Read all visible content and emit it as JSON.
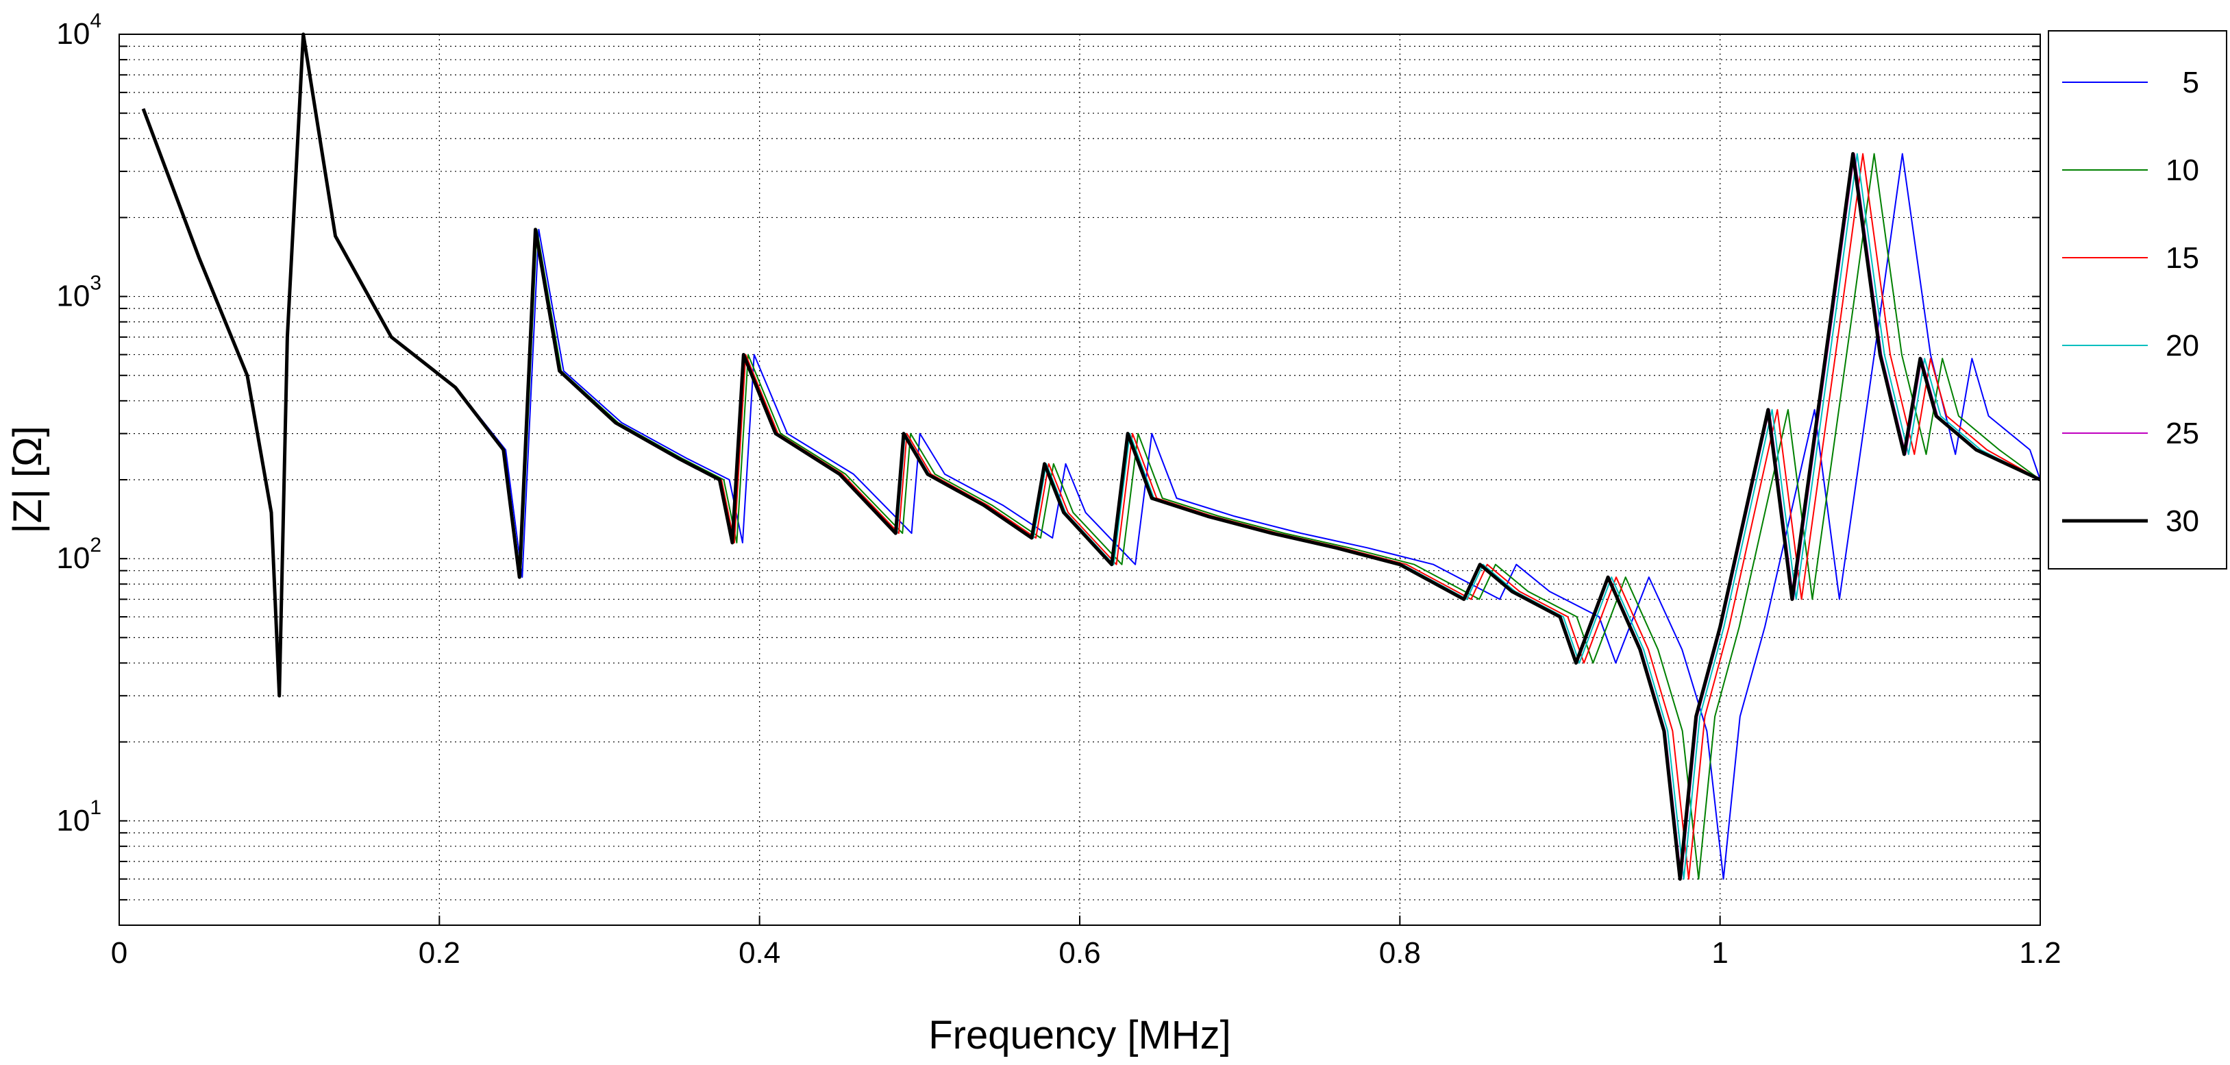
{
  "chart_data": {
    "type": "line",
    "title": "",
    "xlabel": "Frequency [MHz]",
    "ylabel": "|Z| [Ω]",
    "xlim": [
      0,
      1.2
    ],
    "ylim": [
      4,
      10000
    ],
    "yscale": "log",
    "grid": true,
    "grid_style": "dotted",
    "x_ticks": [
      {
        "value": 0,
        "label": "0"
      },
      {
        "value": 0.2,
        "label": "0.2"
      },
      {
        "value": 0.4,
        "label": "0.4"
      },
      {
        "value": 0.6,
        "label": "0.6"
      },
      {
        "value": 0.8,
        "label": "0.8"
      },
      {
        "value": 1.0,
        "label": "1"
      },
      {
        "value": 1.2,
        "label": "1.2"
      }
    ],
    "y_ticks": [
      {
        "value": 10,
        "base": "10",
        "exp": "1"
      },
      {
        "value": 100,
        "base": "10",
        "exp": "2"
      },
      {
        "value": 1000,
        "base": "10",
        "exp": "3"
      },
      {
        "value": 10000,
        "base": "10",
        "exp": "4"
      }
    ],
    "legend_position": "outside-right",
    "series": [
      {
        "name": "5",
        "color": "#0000ff",
        "width": 2,
        "shift": 1.035,
        "x": [
          0.015,
          0.05,
          0.08,
          0.095,
          0.1,
          0.105,
          0.115,
          0.135,
          0.17,
          0.21,
          0.24,
          0.25,
          0.26,
          0.275,
          0.31,
          0.35,
          0.375,
          0.383,
          0.39,
          0.41,
          0.45,
          0.485,
          0.49,
          0.505,
          0.54,
          0.57,
          0.578,
          0.59,
          0.62,
          0.63,
          0.645,
          0.68,
          0.72,
          0.76,
          0.8,
          0.84,
          0.85,
          0.87,
          0.9,
          0.91,
          0.93,
          0.95,
          0.965,
          0.975,
          0.985,
          1.0,
          1.03,
          1.045,
          1.07,
          1.083,
          1.1,
          1.115,
          1.125,
          1.135,
          1.16,
          1.2
        ],
        "y": [
          5200,
          1400,
          500,
          150,
          30,
          700,
          10000,
          1700,
          700,
          450,
          260,
          85,
          1800,
          520,
          330,
          240,
          200,
          115,
          600,
          300,
          210,
          125,
          300,
          210,
          160,
          120,
          230,
          150,
          95,
          300,
          170,
          145,
          125,
          110,
          95,
          70,
          95,
          75,
          60,
          40,
          85,
          45,
          22,
          6,
          25,
          55,
          370,
          70,
          900,
          3500,
          600,
          250,
          580,
          350,
          260,
          200
        ]
      },
      {
        "name": "10",
        "color": "#008000",
        "width": 2,
        "shift": 1.015,
        "x": [
          0.015,
          0.05,
          0.08,
          0.095,
          0.1,
          0.105,
          0.115,
          0.135,
          0.17,
          0.21,
          0.24,
          0.25,
          0.26,
          0.275,
          0.31,
          0.35,
          0.375,
          0.383,
          0.39,
          0.41,
          0.45,
          0.485,
          0.49,
          0.505,
          0.54,
          0.57,
          0.578,
          0.59,
          0.62,
          0.63,
          0.645,
          0.68,
          0.72,
          0.76,
          0.8,
          0.84,
          0.85,
          0.87,
          0.9,
          0.91,
          0.93,
          0.95,
          0.965,
          0.975,
          0.985,
          1.0,
          1.03,
          1.045,
          1.07,
          1.083,
          1.1,
          1.115,
          1.125,
          1.135,
          1.16,
          1.2
        ],
        "y": [
          5200,
          1400,
          500,
          150,
          30,
          700,
          10000,
          1700,
          700,
          450,
          260,
          85,
          1800,
          520,
          330,
          240,
          200,
          115,
          600,
          300,
          210,
          125,
          300,
          210,
          160,
          120,
          230,
          150,
          95,
          300,
          170,
          145,
          125,
          110,
          95,
          70,
          95,
          75,
          60,
          40,
          85,
          45,
          22,
          6,
          25,
          55,
          370,
          70,
          900,
          3500,
          600,
          250,
          580,
          350,
          260,
          200
        ]
      },
      {
        "name": "15",
        "color": "#ff0000",
        "width": 2,
        "shift": 1.007,
        "x": [
          0.015,
          0.05,
          0.08,
          0.095,
          0.1,
          0.105,
          0.115,
          0.135,
          0.17,
          0.21,
          0.24,
          0.25,
          0.26,
          0.275,
          0.31,
          0.35,
          0.375,
          0.383,
          0.39,
          0.41,
          0.45,
          0.485,
          0.49,
          0.505,
          0.54,
          0.57,
          0.578,
          0.59,
          0.62,
          0.63,
          0.645,
          0.68,
          0.72,
          0.76,
          0.8,
          0.84,
          0.85,
          0.87,
          0.9,
          0.91,
          0.93,
          0.95,
          0.965,
          0.975,
          0.985,
          1.0,
          1.03,
          1.045,
          1.07,
          1.083,
          1.1,
          1.115,
          1.125,
          1.135,
          1.16,
          1.2
        ],
        "y": [
          5200,
          1400,
          500,
          150,
          30,
          700,
          10000,
          1700,
          700,
          450,
          260,
          85,
          1800,
          520,
          330,
          240,
          200,
          115,
          600,
          300,
          210,
          125,
          300,
          210,
          160,
          120,
          230,
          150,
          95,
          300,
          170,
          145,
          125,
          110,
          95,
          70,
          95,
          75,
          60,
          40,
          85,
          45,
          22,
          6,
          25,
          55,
          370,
          70,
          900,
          3500,
          600,
          250,
          580,
          350,
          260,
          200
        ]
      },
      {
        "name": "20",
        "color": "#00bfbf",
        "width": 2,
        "shift": 1.003,
        "x": [
          0.015,
          0.05,
          0.08,
          0.095,
          0.1,
          0.105,
          0.115,
          0.135,
          0.17,
          0.21,
          0.24,
          0.25,
          0.26,
          0.275,
          0.31,
          0.35,
          0.375,
          0.383,
          0.39,
          0.41,
          0.45,
          0.485,
          0.49,
          0.505,
          0.54,
          0.57,
          0.578,
          0.59,
          0.62,
          0.63,
          0.645,
          0.68,
          0.72,
          0.76,
          0.8,
          0.84,
          0.85,
          0.87,
          0.9,
          0.91,
          0.93,
          0.95,
          0.965,
          0.975,
          0.985,
          1.0,
          1.03,
          1.045,
          1.07,
          1.083,
          1.1,
          1.115,
          1.125,
          1.135,
          1.16,
          1.2
        ],
        "y": [
          5200,
          1400,
          500,
          150,
          30,
          700,
          10000,
          1700,
          700,
          450,
          260,
          85,
          1800,
          520,
          330,
          240,
          200,
          115,
          600,
          300,
          210,
          125,
          300,
          210,
          160,
          120,
          230,
          150,
          95,
          300,
          170,
          145,
          125,
          110,
          95,
          70,
          95,
          75,
          60,
          40,
          85,
          45,
          22,
          6,
          25,
          55,
          370,
          70,
          900,
          3500,
          600,
          250,
          580,
          350,
          260,
          200
        ]
      },
      {
        "name": "25",
        "color": "#bf00bf",
        "width": 2,
        "shift": 1.001,
        "x": [
          0.015,
          0.05,
          0.08,
          0.095,
          0.1,
          0.105,
          0.115,
          0.135,
          0.17,
          0.21,
          0.24,
          0.25,
          0.26,
          0.275,
          0.31,
          0.35,
          0.375,
          0.383,
          0.39,
          0.41,
          0.45,
          0.485,
          0.49,
          0.505,
          0.54,
          0.57,
          0.578,
          0.59,
          0.62,
          0.63,
          0.645,
          0.68,
          0.72,
          0.76,
          0.8,
          0.84,
          0.85,
          0.87,
          0.9,
          0.91,
          0.93,
          0.95,
          0.965,
          0.975,
          0.985,
          1.0,
          1.03,
          1.045,
          1.07,
          1.083,
          1.1,
          1.115,
          1.125,
          1.135,
          1.16,
          1.2
        ],
        "y": [
          5200,
          1400,
          500,
          150,
          30,
          700,
          10000,
          1700,
          700,
          450,
          260,
          85,
          1800,
          520,
          330,
          240,
          200,
          115,
          600,
          300,
          210,
          125,
          300,
          210,
          160,
          120,
          230,
          150,
          95,
          300,
          170,
          145,
          125,
          110,
          95,
          70,
          95,
          75,
          60,
          40,
          85,
          45,
          22,
          6,
          25,
          55,
          370,
          70,
          900,
          3500,
          600,
          250,
          580,
          350,
          260,
          200
        ]
      },
      {
        "name": "30",
        "color": "#000000",
        "width": 5,
        "shift": 1.0,
        "x": [
          0.015,
          0.05,
          0.08,
          0.095,
          0.1,
          0.105,
          0.115,
          0.135,
          0.17,
          0.21,
          0.24,
          0.25,
          0.26,
          0.275,
          0.31,
          0.35,
          0.375,
          0.383,
          0.39,
          0.41,
          0.45,
          0.485,
          0.49,
          0.505,
          0.54,
          0.57,
          0.578,
          0.59,
          0.62,
          0.63,
          0.645,
          0.68,
          0.72,
          0.76,
          0.8,
          0.84,
          0.85,
          0.87,
          0.9,
          0.91,
          0.93,
          0.95,
          0.965,
          0.975,
          0.985,
          1.0,
          1.03,
          1.045,
          1.07,
          1.083,
          1.1,
          1.115,
          1.125,
          1.135,
          1.16,
          1.2
        ],
        "y": [
          5200,
          1400,
          500,
          150,
          30,
          700,
          10000,
          1700,
          700,
          450,
          260,
          85,
          1800,
          520,
          330,
          240,
          200,
          115,
          600,
          300,
          210,
          125,
          300,
          210,
          160,
          120,
          230,
          150,
          95,
          300,
          170,
          145,
          125,
          110,
          95,
          70,
          95,
          75,
          60,
          40,
          85,
          45,
          22,
          6,
          25,
          55,
          370,
          70,
          900,
          3500,
          600,
          250,
          580,
          350,
          260,
          200
        ]
      }
    ]
  }
}
